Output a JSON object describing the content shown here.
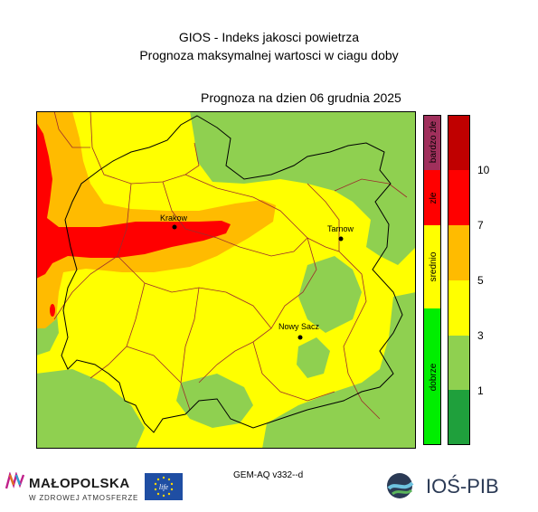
{
  "header": {
    "title_line1": "GIOS - Indeks jakosci powietrza",
    "title_line2": "Prognoza maksymalnej wartosci w ciagu doby",
    "forecast_line": "Prognoza na dzien  06 grudnia 2025"
  },
  "map": {
    "cities": [
      {
        "name": "Krakow"
      },
      {
        "name": "Tarnow"
      },
      {
        "name": "Nowy Sacz"
      }
    ]
  },
  "legend": {
    "categories": [
      {
        "label": "bardzo zle",
        "color": "#a0305c"
      },
      {
        "label": "zle",
        "color": "#ff0000"
      },
      {
        "label": "srednio",
        "color": "#ffff00"
      },
      {
        "label": "dobrze",
        "color": "#00ee00"
      }
    ],
    "scale_colors": [
      "#1fa03c",
      "#8fd050",
      "#ffff00",
      "#ffbb00",
      "#ff0000",
      "#c00000"
    ],
    "scale_ticks": [
      "1",
      "3",
      "5",
      "7",
      "10"
    ]
  },
  "footer": {
    "model": "GEM-AQ v332--d",
    "malopolska_name": "MAŁOPOLSKA",
    "malopolska_tagline": "W ZDROWEJ ATMOSFERZE",
    "eu_label": "life",
    "ios_name": "IOŚ-PIB"
  }
}
